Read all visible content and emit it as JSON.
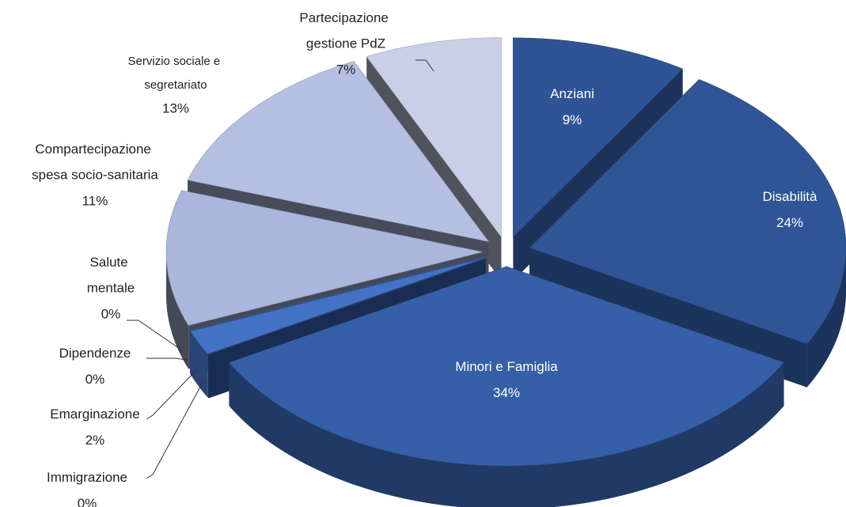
{
  "chart_data": {
    "type": "pie3d",
    "categories": [
      "Anziani",
      "Disabilità",
      "Minori e Famiglia",
      "Immigrazione",
      "Emarginazione",
      "Dipendenze",
      "Salute mentale",
      "Compartecipazione spesa socio-sanitaria",
      "Servizio sociale e segretariato",
      "Partecipazione gestione PdZ"
    ],
    "values": [
      9,
      24,
      34,
      0,
      2,
      0,
      0,
      11,
      13,
      7
    ],
    "value_labels": [
      "9%",
      "24%",
      "34%",
      "0%",
      "2%",
      "0%",
      "0%",
      "11%",
      "13%",
      "7%"
    ],
    "colors": [
      "#2f5496",
      "#2f5597",
      "#3560a8",
      "#2a4b8a",
      "#4472c4",
      "#3b66b5",
      "#4a70c0",
      "#aab6dc",
      "#b5bfe1",
      "#c9cfe7"
    ]
  }
}
